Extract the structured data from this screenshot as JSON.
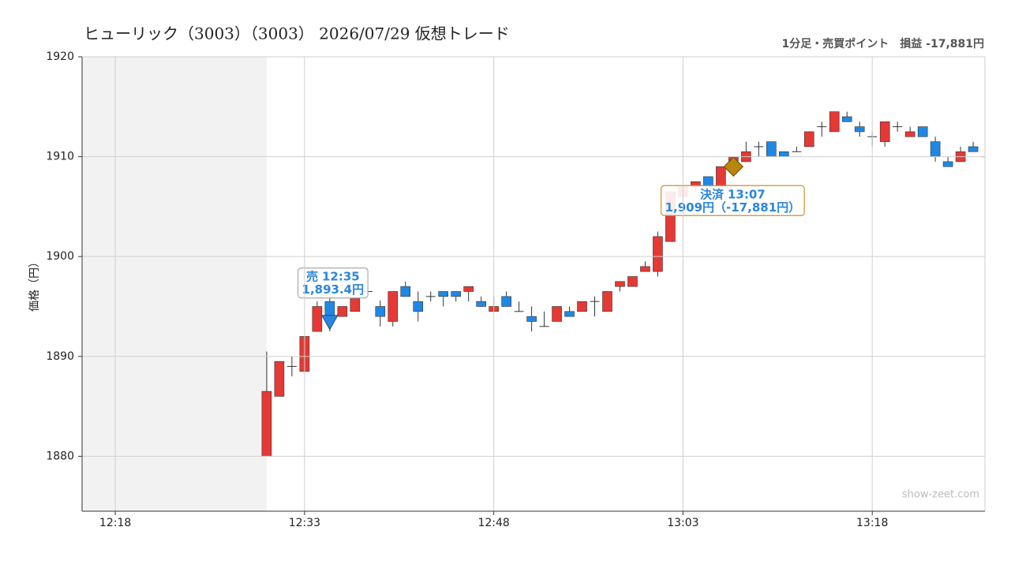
{
  "chart_data": {
    "type": "candlestick",
    "title": "ヒューリック（3003）（3003） 2026/07/29 仮想トレード",
    "subtitle": "1分足・売買ポイント　損益 -17,881円",
    "y_label": "価格（円）",
    "watermark": "show-zeet.com",
    "x": [
      "12:30",
      "12:31",
      "12:32",
      "12:33",
      "12:34",
      "12:35",
      "12:36",
      "12:37",
      "12:38",
      "12:39",
      "12:40",
      "12:41",
      "12:42",
      "12:43",
      "12:44",
      "12:45",
      "12:46",
      "12:47",
      "12:48",
      "12:49",
      "12:50",
      "12:51",
      "12:52",
      "12:53",
      "12:54",
      "12:55",
      "12:56",
      "12:57",
      "12:58",
      "12:59",
      "13:00",
      "13:01",
      "13:02",
      "13:03",
      "13:04",
      "13:05",
      "13:06",
      "13:07",
      "13:08",
      "13:09",
      "13:10",
      "13:11",
      "13:12",
      "13:13",
      "13:14",
      "13:15",
      "13:16",
      "13:17",
      "13:18",
      "13:19",
      "13:20",
      "13:21",
      "13:22",
      "13:23",
      "13:24",
      "13:25",
      "13:26",
      "13:27"
    ],
    "open": [
      1880,
      1886,
      1889,
      1888.5,
      1892.5,
      1895.5,
      1894,
      1894.5,
      1896.5,
      1895,
      1893.5,
      1897,
      1895.5,
      1896,
      1896.5,
      1896.5,
      1896.5,
      1895.5,
      1894.5,
      1896,
      1894.5,
      1894,
      1893,
      1893.5,
      1894.5,
      1894.5,
      1895.5,
      1894.5,
      1897,
      1897,
      1898.5,
      1898.5,
      1901.5,
      1906,
      1907,
      1908,
      1907,
      1909,
      1909.5,
      1911,
      1911.5,
      1910.5,
      1910.5,
      1911,
      1913,
      1912.5,
      1914,
      1913,
      1912,
      1911.5,
      1913,
      1912,
      1913,
      1911.5,
      1909.5,
      1909.5,
      1911,
      1910
    ],
    "high": [
      1890.5,
      1889.5,
      1890,
      1892,
      1895.5,
      1896.3,
      1895,
      1896,
      1896.8,
      1895.6,
      1896.5,
      1897.5,
      1896.5,
      1896.5,
      1896.5,
      1896.5,
      1897,
      1896,
      1896,
      1896.5,
      1895.5,
      1895,
      1894.5,
      1895,
      1895,
      1895.5,
      1896,
      1896.5,
      1897.5,
      1898,
      1899.5,
      1902.5,
      1906.5,
      1907,
      1907.5,
      1908,
      1909,
      1910,
      1911.5,
      1911.5,
      1911.5,
      1910.5,
      1911,
      1912.5,
      1913.5,
      1914.5,
      1914.5,
      1913.5,
      1912.5,
      1913.5,
      1913.5,
      1913,
      1913,
      1912,
      1910,
      1911,
      1911.5,
      1910.5
    ],
    "low": [
      1880,
      1886,
      1888,
      1888.5,
      1892.5,
      1892.5,
      1894,
      1894.5,
      1896.3,
      1893,
      1893,
      1896,
      1893.5,
      1895.5,
      1895,
      1895.5,
      1895.5,
      1895,
      1894.5,
      1895,
      1894.5,
      1892.5,
      1893,
      1893.5,
      1894,
      1894.5,
      1894,
      1894.5,
      1896.5,
      1897,
      1898.5,
      1898,
      1901.5,
      1905.5,
      1906.5,
      1907,
      1906.5,
      1909,
      1909.5,
      1910,
      1910,
      1910,
      1910.5,
      1911,
      1912,
      1912.5,
      1913.5,
      1912,
      1911,
      1911,
      1912.5,
      1912,
      1912,
      1909.5,
      1909,
      1909.5,
      1910.5,
      1910
    ],
    "close": [
      1886.5,
      1889.5,
      1889,
      1892,
      1895,
      1894,
      1895,
      1895.8,
      1896.5,
      1894,
      1896.5,
      1896,
      1894.5,
      1896,
      1896,
      1896,
      1897,
      1895,
      1895,
      1895,
      1894.5,
      1893.5,
      1893,
      1895,
      1894,
      1895.5,
      1895.5,
      1896.5,
      1897.5,
      1898,
      1899,
      1902,
      1906.5,
      1907,
      1907.5,
      1907,
      1909,
      1910,
      1910.5,
      1911,
      1910,
      1910,
      1910.5,
      1912.5,
      1913,
      1914.5,
      1913.5,
      1912.5,
      1912,
      1913.5,
      1913,
      1912.5,
      1912,
      1910,
      1909,
      1910.5,
      1910.5,
      1910
    ],
    "up_color": "#e53935",
    "down_color": "#1e88e5",
    "xlim": [
      "12:15:22",
      "13:26:56"
    ],
    "xticks": [
      "12:18",
      "12:33",
      "12:48",
      "13:03",
      "13:18"
    ],
    "ylim": [
      1874.5,
      1920
    ],
    "yticks": [
      1880,
      1890,
      1900,
      1910,
      1920
    ],
    "grid": true,
    "trades": [
      {
        "side": "売",
        "time": "12:35",
        "price": 1893.4,
        "price_label": "1,893.4円",
        "marker": "triangle",
        "color": "#2a86e0"
      },
      {
        "side": "決済",
        "time": "13:07",
        "price": 1909,
        "price_label": "1,909円（-17,881円）",
        "marker": "diamond",
        "color": "#b8860b"
      }
    ]
  }
}
